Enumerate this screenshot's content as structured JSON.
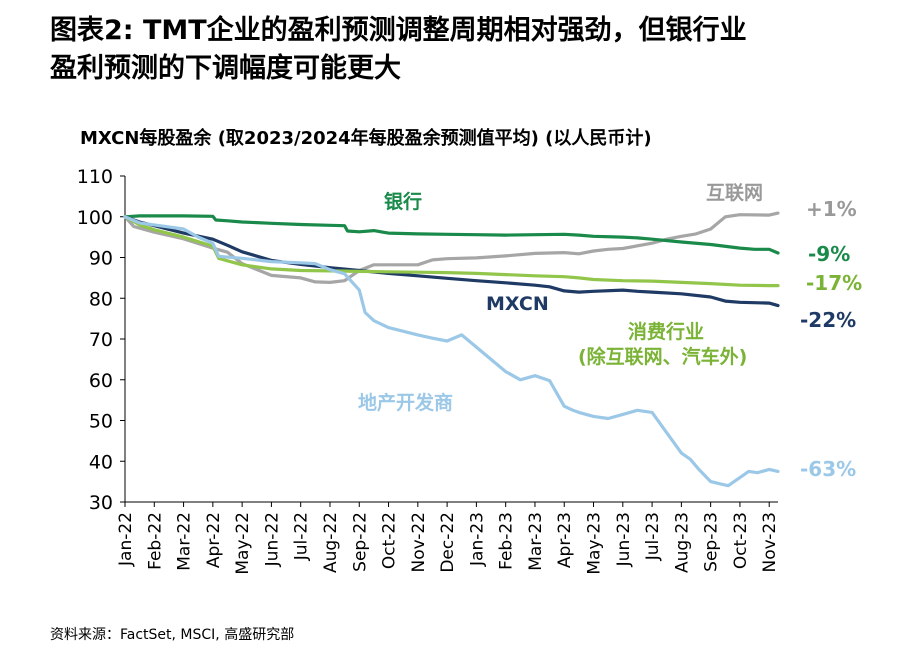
{
  "heading": {
    "line1": "图表2: TMT企业的盈利预测调整周期相对强劲，但银行业",
    "line2": "盈利预测的下调幅度可能更大"
  },
  "chart_title": "MXCN每股盈余 (取2023/2024年每股盈余预测值平均) (以人民币计)",
  "source": "资料来源：FactSet, MSCI, 高盛研究部",
  "chart_data": {
    "type": "line",
    "title": "MXCN每股盈余 (取2023/2024年每股盈余预测值平均) (以人民币计)",
    "xlabel": "",
    "ylabel": "",
    "ylim": [
      30,
      110
    ],
    "yticks": [
      30,
      40,
      50,
      60,
      70,
      80,
      90,
      100,
      110
    ],
    "x_ticklabels": [
      "Jan-22",
      "Feb-22",
      "Mar-22",
      "Apr-22",
      "May-22",
      "Jun-22",
      "Jul-22",
      "Aug-22",
      "Sep-22",
      "Oct-22",
      "Nov-22",
      "Dec-22",
      "Jan-23",
      "Feb-23",
      "Mar-23",
      "Apr-23",
      "May-23",
      "Jun-23",
      "Jul-23",
      "Aug-23",
      "Sep-23",
      "Oct-23",
      "Nov-23"
    ],
    "x_range_months": [
      0,
      22.3
    ],
    "series": [
      {
        "name": "银行",
        "end_label": "-9%",
        "color": "#1a8a4a",
        "x": [
          0,
          0.5,
          1,
          2,
          3,
          3.1,
          3.5,
          4,
          5,
          6,
          7,
          7.5,
          7.6,
          8,
          8.5,
          9,
          10,
          11,
          12,
          13,
          14,
          15,
          15.5,
          16,
          17,
          17.5,
          18,
          19,
          20,
          21,
          21.5,
          22,
          22.3
        ],
        "y": [
          100,
          100.2,
          100.2,
          100.2,
          100.1,
          99.2,
          99,
          98.7,
          98.4,
          98.1,
          97.9,
          97.8,
          96.5,
          96.3,
          96.6,
          96,
          95.8,
          95.7,
          95.6,
          95.5,
          95.6,
          95.7,
          95.5,
          95.2,
          95,
          94.8,
          94.5,
          93.8,
          93.2,
          92.3,
          92,
          92,
          91.1
        ]
      },
      {
        "name": "互联网",
        "end_label": "+1%",
        "color": "#a6a6a6",
        "x": [
          0,
          0.3,
          1,
          2,
          3,
          3.5,
          4,
          5,
          6,
          6.5,
          7,
          7.5,
          8,
          8.5,
          9,
          10,
          10.5,
          11,
          12,
          13,
          14,
          15,
          15.5,
          16,
          16.5,
          17,
          18,
          18.5,
          19,
          19.5,
          20,
          20.5,
          21,
          22,
          22.3
        ],
        "y": [
          100,
          97.6,
          96.2,
          94.6,
          92.3,
          91.3,
          88.5,
          85.6,
          85,
          84,
          83.9,
          84.3,
          86.8,
          88.2,
          88.2,
          88.2,
          89.4,
          89.7,
          89.9,
          90.4,
          91,
          91.2,
          90.9,
          91.6,
          92,
          92.2,
          93.5,
          94.5,
          95.2,
          95.8,
          97,
          100,
          100.5,
          100.4,
          100.9
        ]
      },
      {
        "name": "MXCN",
        "end_label": "-22%",
        "color": "#1f3a64",
        "x": [
          0,
          0.5,
          1,
          2,
          3,
          3.5,
          4,
          5,
          6,
          7,
          8,
          9,
          10,
          11,
          12,
          13,
          14,
          14.5,
          15,
          15.5,
          16,
          17,
          17.5,
          18,
          19,
          20,
          20.5,
          21,
          22,
          22.3
        ],
        "y": [
          100,
          98.7,
          97.8,
          96,
          94.5,
          93,
          91.4,
          89.3,
          88.3,
          87.5,
          86.8,
          86.1,
          85.5,
          84.9,
          84.3,
          83.8,
          83.2,
          82.8,
          81.8,
          81.5,
          81.7,
          82,
          81.7,
          81.5,
          81.1,
          80.3,
          79.3,
          79,
          78.8,
          78.2
        ]
      },
      {
        "name": "消费行业 (除互联网、汽车外)",
        "name_line1": "消费行业",
        "name_line2": "(除互联网、汽车外)",
        "end_label": "-17%",
        "color": "#92c64a",
        "x": [
          0,
          0.5,
          1,
          2,
          3,
          3.2,
          3.5,
          4,
          5,
          6,
          7,
          8,
          9,
          10,
          11,
          12,
          13,
          14,
          15,
          15.5,
          16,
          17,
          18,
          19,
          20,
          21,
          22,
          22.3
        ],
        "y": [
          100,
          98,
          96.8,
          95,
          92.8,
          89.8,
          89.2,
          88.2,
          87.2,
          86.8,
          86.7,
          86.6,
          86.5,
          86.4,
          86.3,
          86.1,
          85.8,
          85.5,
          85.3,
          85,
          84.6,
          84.3,
          84.2,
          83.9,
          83.6,
          83.2,
          83.1,
          83.1
        ]
      },
      {
        "name": "地产开发商",
        "end_label": "-63%",
        "color": "#9cc8e8",
        "x": [
          0,
          0.5,
          1,
          2,
          2.5,
          3,
          3.2,
          4,
          5,
          6,
          6.5,
          7,
          7.5,
          8,
          8.2,
          8.5,
          9,
          10,
          10.5,
          11,
          11.5,
          12,
          12.5,
          13,
          13.5,
          14,
          14.5,
          15,
          15.3,
          15.5,
          16,
          16.5,
          17,
          17.5,
          18,
          18.5,
          19,
          19.3,
          19.6,
          20,
          20.3,
          20.6,
          21,
          21.3,
          21.6,
          22,
          22.3
        ],
        "y": [
          100,
          98.5,
          98,
          97,
          95,
          93.5,
          90.3,
          89.8,
          89,
          88.7,
          88.5,
          87,
          86,
          82,
          76.5,
          74.5,
          72.8,
          71,
          70.2,
          69.5,
          71,
          68,
          65,
          62,
          60,
          61,
          59.8,
          53.5,
          52.5,
          52,
          51,
          50.5,
          51.5,
          52.5,
          52,
          47,
          42,
          40.5,
          38,
          35,
          34.5,
          34,
          36,
          37.5,
          37.2,
          38,
          37.5
        ]
      }
    ],
    "annotations": {
      "mxcn_label": "MXCN"
    }
  }
}
